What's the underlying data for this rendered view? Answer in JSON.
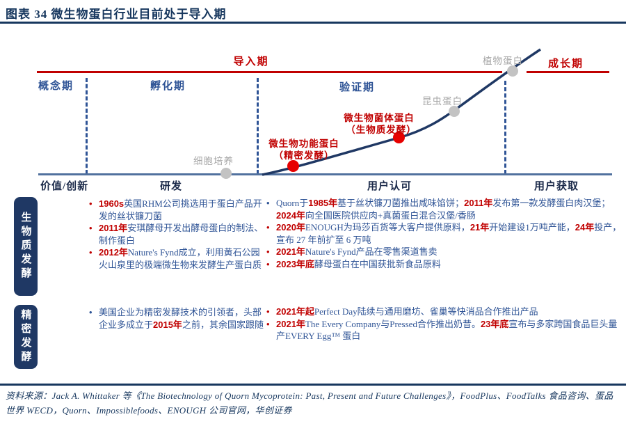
{
  "figure": {
    "title": "图表 34  微生物蛋白行业目前处于导入期"
  },
  "chart": {
    "type": "lifecycle-curve-diagram",
    "stage_labels": {
      "concept": "概念期",
      "incubation": "孵化期",
      "validation": "验证期",
      "introduction": "导入期",
      "growth": "成长期"
    },
    "axis_labels": {
      "value_innovation": "价值/创新",
      "rd": "研发",
      "user_recognition": "用户认可",
      "user_acquisition": "用户获取"
    },
    "points": {
      "cell_culture": {
        "label": "细胞培养",
        "type": "gray"
      },
      "functional_protein": {
        "label": "微生物功能蛋白",
        "sub": "（精密发酵）",
        "type": "red"
      },
      "biomass_protein": {
        "label": "微生物菌体蛋白",
        "sub": "（生物质发酵）",
        "type": "red"
      },
      "insect_protein": {
        "label": "昆虫蛋白",
        "type": "gray"
      },
      "plant_protein": {
        "label": "植物蛋白",
        "type": "gray"
      }
    },
    "colors": {
      "stage_red": "#C00000",
      "stage_blue": "#2F5496",
      "curve_navy": "#1F3864",
      "baseline_blue": "#51719E",
      "dot_red": "#E60000",
      "dot_gray": "#C3C3C3",
      "label_gray": "#A6A6A6"
    }
  },
  "sections": [
    {
      "sidebar": "生物质发酵",
      "left_bullets": [
        {
          "marker": "red",
          "segments": [
            {
              "t": "1960s",
              "red": true
            },
            {
              "t": "英国RHM公司挑选用于蛋白产品开发的丝状镰刀菌"
            }
          ]
        },
        {
          "marker": "red",
          "segments": [
            {
              "t": "2011年",
              "red": true
            },
            {
              "t": "安琪酵母开发出酵母蛋白的制法、制作蛋白"
            }
          ]
        },
        {
          "marker": "red",
          "segments": [
            {
              "t": "2012年",
              "red": true
            },
            {
              "t": "Nature's Fynd成立，利用黄石公园火山泉里的极端微生物来发酵生产蛋白质"
            }
          ]
        }
      ],
      "right_bullets": [
        {
          "marker": "blue",
          "segments": [
            {
              "t": "Quorn于"
            },
            {
              "t": "1985年",
              "red": true
            },
            {
              "t": "基于丝状镰刀菌推出咸味馅饼；"
            },
            {
              "t": "2011年",
              "red": true
            },
            {
              "t": "发布第一款发酵蛋白肉汉堡；"
            },
            {
              "t": "2024年",
              "red": true
            },
            {
              "t": "向全国医院供应肉+真菌蛋白混合汉堡/香肠"
            }
          ]
        },
        {
          "marker": "red",
          "segments": [
            {
              "t": "2020年",
              "red": true
            },
            {
              "t": "ENOUGH为玛莎百货等大客户提供原料，"
            },
            {
              "t": "21年",
              "red": true
            },
            {
              "t": "开始建设1万吨产能，"
            },
            {
              "t": "24年",
              "red": true
            },
            {
              "t": "投产，宣布 27 年前扩至 6 万吨"
            }
          ]
        },
        {
          "marker": "red",
          "segments": [
            {
              "t": "2021年",
              "red": true
            },
            {
              "t": "Nature's Fynd产品在零售渠道售卖"
            }
          ]
        },
        {
          "marker": "red",
          "segments": [
            {
              "t": "2023年底",
              "red": true
            },
            {
              "t": "酵母蛋白在中国获批新食品原料"
            }
          ]
        }
      ]
    },
    {
      "sidebar": "精密发酵",
      "left_bullets": [
        {
          "marker": "blue",
          "segments": [
            {
              "t": "美国企业为精密发酵技术的引领者，头部企业多成立于"
            },
            {
              "t": "2015年",
              "red": true
            },
            {
              "t": "之前，其余国家跟随"
            }
          ]
        }
      ],
      "right_bullets": [
        {
          "marker": "red",
          "segments": [
            {
              "t": "2021年起",
              "red": true
            },
            {
              "t": "Perfect Day陆续与通用磨坊、雀巢等快消品合作推出产品"
            }
          ]
        },
        {
          "marker": "red",
          "segments": [
            {
              "t": "2021年",
              "red": true
            },
            {
              "t": "The Every Company与Pressed合作推出奶昔。"
            },
            {
              "t": "23年底",
              "red": true
            },
            {
              "t": "宣布与多家跨国食品巨头量产EVERY Egg™ 蛋白"
            }
          ]
        }
      ]
    }
  ],
  "source": {
    "text": "资料来源：Jack A. Whittaker 等《The Biotechnology of Quorn Mycoprotein: Past, Present and Future Challenges》，FoodPlus、FoodTalks 食品咨询、蛋品世界 WECD，Quorn、Impossiblefoods、ENOUGH 公司官网，华创证券"
  }
}
